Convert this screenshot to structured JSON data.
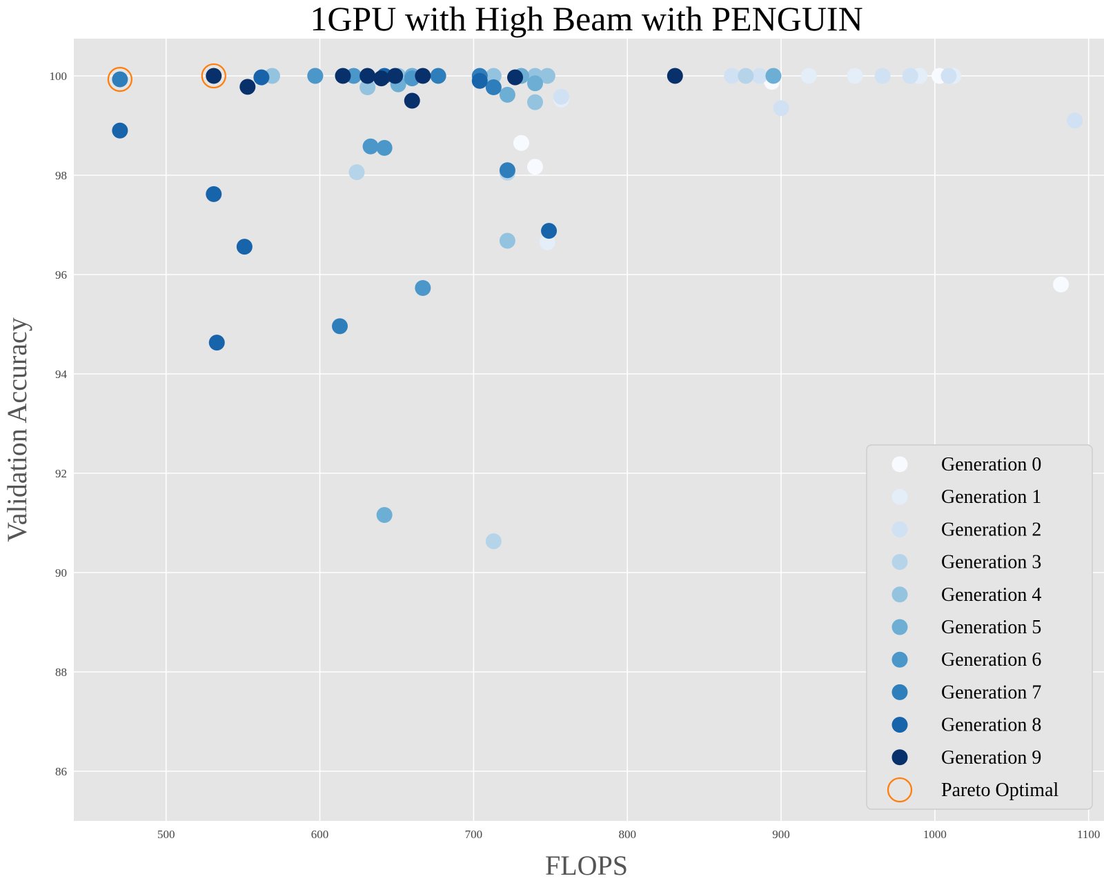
{
  "chart_data": {
    "type": "scatter",
    "title": "1GPU with High Beam with PENGUIN",
    "xlabel": "FLOPS",
    "ylabel": "Validation Accuracy",
    "xlim": [
      440,
      1110
    ],
    "ylim": [
      85,
      100.75
    ],
    "xticks": [
      500,
      600,
      700,
      800,
      900,
      1000,
      1100
    ],
    "yticks": [
      86,
      88,
      90,
      92,
      94,
      96,
      98,
      100
    ],
    "grid": true,
    "legend_position": "bottom-right",
    "series": [
      {
        "name": "Generation 0",
        "color": "#f7fbff",
        "points": [
          [
            894,
            99.88
          ],
          [
            731,
            98.65
          ],
          [
            740,
            98.17
          ],
          [
            1082,
            95.8
          ],
          [
            990,
            100.0
          ],
          [
            1003,
            100.0
          ]
        ]
      },
      {
        "name": "Generation 1",
        "color": "#e3eef9",
        "points": [
          [
            748,
            96.65
          ],
          [
            757,
            99.52
          ],
          [
            918,
            100.0
          ],
          [
            948,
            100.0
          ],
          [
            1012,
            100.0
          ],
          [
            990,
            100.0
          ]
        ]
      },
      {
        "name": "Generation 2",
        "color": "#cfe1f2",
        "points": [
          [
            900,
            99.35
          ],
          [
            1091,
            99.1
          ],
          [
            868,
            100.0
          ],
          [
            886,
            100.0
          ],
          [
            966,
            100.0
          ],
          [
            984,
            100.0
          ],
          [
            757,
            99.58
          ],
          [
            1009,
            100.0
          ]
        ]
      },
      {
        "name": "Generation 3",
        "color": "#b5d4e9",
        "points": [
          [
            624,
            98.06
          ],
          [
            713,
            90.63
          ],
          [
            722,
            98.05
          ],
          [
            660,
            100.0
          ],
          [
            877,
            100.0
          ]
        ]
      },
      {
        "name": "Generation 4",
        "color": "#93c3df",
        "points": [
          [
            569,
            100.0
          ],
          [
            631,
            99.77
          ],
          [
            722,
            96.68
          ],
          [
            740,
            99.47
          ],
          [
            748,
            100.0
          ],
          [
            740,
            100.0
          ],
          [
            713,
            100.0
          ],
          [
            651,
            100.0
          ]
        ]
      },
      {
        "name": "Generation 5",
        "color": "#6daed5",
        "points": [
          [
            597,
            100.0
          ],
          [
            642,
            91.16
          ],
          [
            651,
            99.83
          ],
          [
            722,
            99.62
          ],
          [
            740,
            99.85
          ],
          [
            731,
            100.0
          ],
          [
            895,
            100.0
          ],
          [
            660,
            100.0
          ]
        ]
      },
      {
        "name": "Generation 6",
        "color": "#4b97c9",
        "points": [
          [
            633,
            98.58
          ],
          [
            642,
            98.55
          ],
          [
            667,
            95.73
          ],
          [
            622,
            100.0
          ],
          [
            660,
            99.95
          ],
          [
            597,
            100.0
          ]
        ]
      },
      {
        "name": "Generation 7",
        "color": "#2f7ebc",
        "points": [
          [
            470,
            99.93
          ],
          [
            613,
            94.96
          ],
          [
            722,
            98.1
          ],
          [
            713,
            99.77
          ],
          [
            677,
            100.0
          ],
          [
            704,
            100.0
          ]
        ]
      },
      {
        "name": "Generation 8",
        "color": "#1864aa",
        "points": [
          [
            470,
            98.9
          ],
          [
            531,
            97.62
          ],
          [
            551,
            96.56
          ],
          [
            533,
            94.63
          ],
          [
            562,
            99.97
          ],
          [
            704,
            99.9
          ],
          [
            749,
            96.88
          ],
          [
            642,
            100.0
          ]
        ]
      },
      {
        "name": "Generation 9",
        "color": "#08306b",
        "points": [
          [
            531,
            100.0
          ],
          [
            553,
            99.78
          ],
          [
            615,
            100.0
          ],
          [
            631,
            100.0
          ],
          [
            640,
            99.95
          ],
          [
            649,
            100.0
          ],
          [
            660,
            99.5
          ],
          [
            667,
            100.0
          ],
          [
            727,
            99.97
          ],
          [
            831,
            100.0
          ]
        ]
      }
    ],
    "pareto_optimal": {
      "name": "Pareto Optimal",
      "color": "#ff7f0e",
      "points": [
        [
          470,
          99.93
        ],
        [
          531,
          100.0
        ]
      ]
    }
  }
}
